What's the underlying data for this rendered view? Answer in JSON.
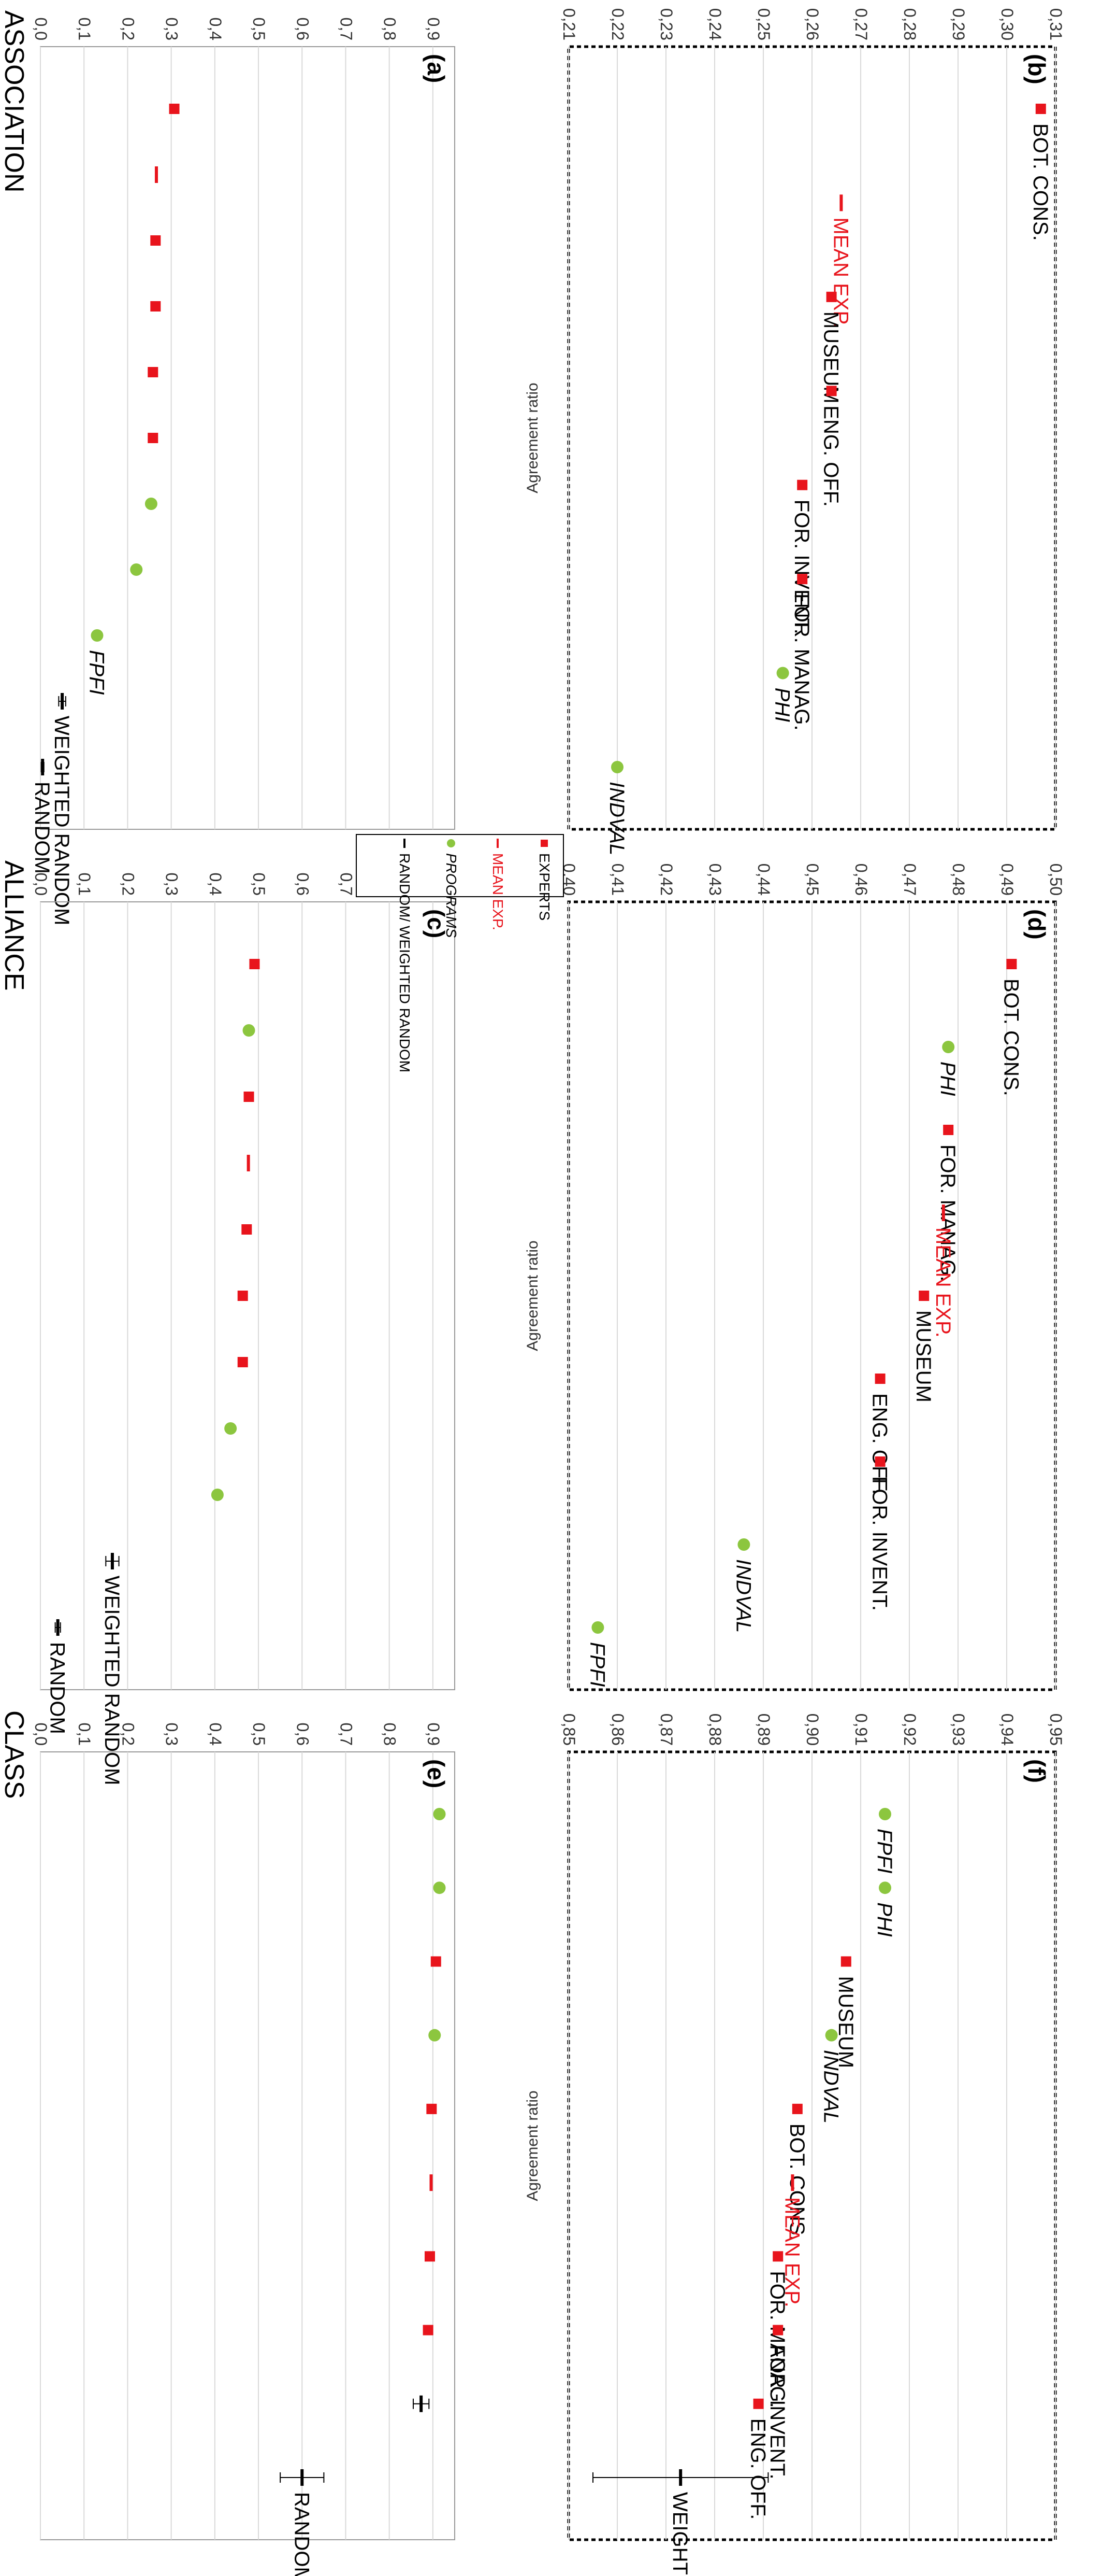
{
  "legend": [
    {
      "marker": "square",
      "label": "EXPERTS",
      "color": "#e8141c"
    },
    {
      "marker": "dash",
      "label": "MEAN EXP.",
      "color": "#e8141c"
    },
    {
      "marker": "circle",
      "label": "PROGRAMS",
      "color": "#8cc63f"
    },
    {
      "marker": "dash",
      "label": "RANDOM/ WEIGHTED RANDOM",
      "color": "#000000"
    }
  ],
  "colors": {
    "experts": "#e8141c",
    "mean": "#e8141c",
    "programs": "#8cc63f",
    "random": "#000000",
    "grid": "#d9d9d9"
  },
  "sections": {
    "association": "ASSOCIATION",
    "alliance": "ALLIANCE",
    "class": "CLASS"
  },
  "chart_data": [
    {
      "id": "a",
      "panel_label": "(a)",
      "type": "scatter",
      "section": "ASSOCIATION",
      "ylabel": "",
      "ylim": [
        0.0,
        0.95
      ],
      "ticks": [
        "0,0",
        "0,1",
        "0,2",
        "0,3",
        "0,4",
        "0,5",
        "0,6",
        "0,7",
        "0,8",
        "0,9"
      ],
      "points": [
        {
          "name": "BOT. CONS.",
          "kind": "expert",
          "value": 0.307
        },
        {
          "name": "MEAN EXP.",
          "kind": "mean",
          "value": 0.266
        },
        {
          "name": "MUSEUM",
          "kind": "expert",
          "value": 0.264
        },
        {
          "name": "ENG. OFF.",
          "kind": "expert",
          "value": 0.264
        },
        {
          "name": "FOR. INVENT.",
          "kind": "expert",
          "value": 0.258
        },
        {
          "name": "FOR. MANAG.",
          "kind": "expert",
          "value": 0.258
        },
        {
          "name": "PHI",
          "kind": "program",
          "value": 0.254
        },
        {
          "name": "INDVAL",
          "kind": "program",
          "value": 0.22
        },
        {
          "name": "FPFI",
          "kind": "program",
          "value": 0.13,
          "label": "FPFI"
        },
        {
          "name": "WEIGHTED RANDOM",
          "kind": "random",
          "value": 0.05,
          "err": 0.008,
          "label": "WEIGHTED RANDOM"
        },
        {
          "name": "RANDOM",
          "kind": "random",
          "value": 0.005,
          "err": 0.003,
          "label": "RANDOM"
        }
      ]
    },
    {
      "id": "b",
      "panel_label": "(b)",
      "type": "scatter",
      "section": "ASSOCIATION",
      "ylabel": "Agreement ratio",
      "ylim": [
        0.21,
        0.31
      ],
      "ticks": [
        "0,21",
        "0,22",
        "0,23",
        "0,24",
        "0,25",
        "0,26",
        "0,27",
        "0,28",
        "0,29",
        "0,30",
        "0,31"
      ],
      "points": [
        {
          "name": "BOT. CONS.",
          "kind": "expert",
          "value": 0.307,
          "label": "BOT. CONS."
        },
        {
          "name": "MEAN EXP.",
          "kind": "mean",
          "value": 0.266,
          "label": "MEAN EXP."
        },
        {
          "name": "MUSEUM",
          "kind": "expert",
          "value": 0.264,
          "label": "MUSEUM"
        },
        {
          "name": "ENG. OFF.",
          "kind": "expert",
          "value": 0.264,
          "label": "ENG. OFF."
        },
        {
          "name": "FOR. INVENT.",
          "kind": "expert",
          "value": 0.258,
          "label": "FOR. INVENT."
        },
        {
          "name": "FOR. MANAG.",
          "kind": "expert",
          "value": 0.258,
          "label": "FOR. MANAG."
        },
        {
          "name": "PHI",
          "kind": "program",
          "value": 0.254,
          "label": "PHI"
        },
        {
          "name": "INDVAL",
          "kind": "program",
          "value": 0.22,
          "label": "INDVAL"
        }
      ]
    },
    {
      "id": "c",
      "panel_label": "(c)",
      "type": "scatter",
      "section": "ALLIANCE",
      "ylabel": "",
      "ylim": [
        0.0,
        0.95
      ],
      "ticks": [
        "0,0",
        "0,1",
        "0,2",
        "0,3",
        "0,4",
        "0,5",
        "0,6",
        "0,7",
        "0,8",
        "0,9"
      ],
      "points": [
        {
          "name": "BOT. CONS.",
          "kind": "expert",
          "value": 0.491
        },
        {
          "name": "PHI",
          "kind": "program",
          "value": 0.478
        },
        {
          "name": "FOR. MANAG.",
          "kind": "expert",
          "value": 0.478
        },
        {
          "name": "MEAN EXP.",
          "kind": "mean",
          "value": 0.477
        },
        {
          "name": "MUSEUM",
          "kind": "expert",
          "value": 0.473
        },
        {
          "name": "ENG. OFF.",
          "kind": "expert",
          "value": 0.464
        },
        {
          "name": "FOR. INVENT.",
          "kind": "expert",
          "value": 0.464
        },
        {
          "name": "INDVAL",
          "kind": "program",
          "value": 0.436
        },
        {
          "name": "FPFI",
          "kind": "program",
          "value": 0.406
        },
        {
          "name": "WEIGHTED RANDOM",
          "kind": "random",
          "value": 0.165,
          "err": 0.015,
          "label": "WEIGHTED RANDOM"
        },
        {
          "name": "RANDOM",
          "kind": "random",
          "value": 0.04,
          "err": 0.006,
          "label": "RANDOM"
        }
      ]
    },
    {
      "id": "d",
      "panel_label": "(d)",
      "type": "scatter",
      "section": "ALLIANCE",
      "ylabel": "Agreement ratio",
      "ylim": [
        0.4,
        0.5
      ],
      "ticks": [
        "0,40",
        "0,41",
        "0,42",
        "0,43",
        "0,44",
        "0,45",
        "0,46",
        "0,47",
        "0,48",
        "0,49",
        "0,50"
      ],
      "points": [
        {
          "name": "BOT. CONS.",
          "kind": "expert",
          "value": 0.491,
          "label": "BOT. CONS."
        },
        {
          "name": "PHI",
          "kind": "program",
          "value": 0.478,
          "label": "PHI"
        },
        {
          "name": "FOR. MANAG.",
          "kind": "expert",
          "value": 0.478,
          "label": "FOR. MANAG."
        },
        {
          "name": "MEAN EXP.",
          "kind": "mean",
          "value": 0.477,
          "label": "MEAN EXP."
        },
        {
          "name": "MUSEUM",
          "kind": "expert",
          "value": 0.473,
          "label": "MUSEUM"
        },
        {
          "name": "ENG. OFF.",
          "kind": "expert",
          "value": 0.464,
          "label": "ENG. OFF."
        },
        {
          "name": "FOR. INVENT.",
          "kind": "expert",
          "value": 0.464,
          "label": "FOR. INVENT."
        },
        {
          "name": "INDVAL",
          "kind": "program",
          "value": 0.436,
          "label": "INDVAL"
        },
        {
          "name": "FPFI",
          "kind": "program",
          "value": 0.406,
          "label": "FPFI"
        }
      ]
    },
    {
      "id": "e",
      "panel_label": "(e)",
      "type": "scatter",
      "section": "CLASS",
      "ylabel": "",
      "ylim": [
        0.0,
        0.95
      ],
      "ticks": [
        "0,0",
        "0,1",
        "0,2",
        "0,3",
        "0,4",
        "0,5",
        "0,6",
        "0,7",
        "0,8",
        "0,9"
      ],
      "points": [
        {
          "name": "FPFI",
          "kind": "program",
          "value": 0.915
        },
        {
          "name": "PHI",
          "kind": "program",
          "value": 0.915
        },
        {
          "name": "MUSEUM",
          "kind": "expert",
          "value": 0.907
        },
        {
          "name": "INDVAL",
          "kind": "program",
          "value": 0.904
        },
        {
          "name": "BOT. CONS.",
          "kind": "expert",
          "value": 0.897
        },
        {
          "name": "MEAN EXP.",
          "kind": "mean",
          "value": 0.896
        },
        {
          "name": "FOR. MANAG.",
          "kind": "expert",
          "value": 0.893
        },
        {
          "name": "ENG. OFF.",
          "kind": "expert",
          "value": 0.889
        },
        {
          "name": "WEIGHTED RANDOM",
          "kind": "random",
          "value": 0.873,
          "err": 0.018
        },
        {
          "name": "RANDOM",
          "kind": "random",
          "value": 0.6,
          "err": 0.05,
          "label": "RANDOM"
        }
      ]
    },
    {
      "id": "f",
      "panel_label": "(f)",
      "type": "scatter",
      "section": "CLASS",
      "ylabel": "Agreement ratio",
      "ylim": [
        0.85,
        0.95
      ],
      "ticks": [
        "0,85",
        "0,86",
        "0,87",
        "0,88",
        "0,89",
        "0,90",
        "0,91",
        "0,92",
        "0,93",
        "0,94",
        "0,95"
      ],
      "points": [
        {
          "name": "FPFI",
          "kind": "program",
          "value": 0.915,
          "label": "FPFI"
        },
        {
          "name": "PHI",
          "kind": "program",
          "value": 0.915,
          "label": "PHI"
        },
        {
          "name": "MUSEUM",
          "kind": "expert",
          "value": 0.907,
          "label": "MUSEUM"
        },
        {
          "name": "INDVAL",
          "kind": "program",
          "value": 0.904,
          "label": "INDVAL"
        },
        {
          "name": "BOT. CONS.",
          "kind": "expert",
          "value": 0.897,
          "label": "BOT. CONS."
        },
        {
          "name": "MEAN EXP.",
          "kind": "mean",
          "value": 0.896,
          "label": "MEAN EXP."
        },
        {
          "name": "FOR. MANAG.",
          "kind": "expert",
          "value": 0.893,
          "label": "FOR. MANAG."
        },
        {
          "name": "FOR. INVENT.",
          "kind": "expert",
          "value": 0.893,
          "label": "FOR. INVENT."
        },
        {
          "name": "ENG. OFF.",
          "kind": "expert",
          "value": 0.889,
          "label": "ENG. OFF."
        },
        {
          "name": "WEIGHTED RANDOM",
          "kind": "random",
          "value": 0.873,
          "err": 0.018,
          "label": "WEIGHTED RANDOM"
        }
      ]
    }
  ]
}
